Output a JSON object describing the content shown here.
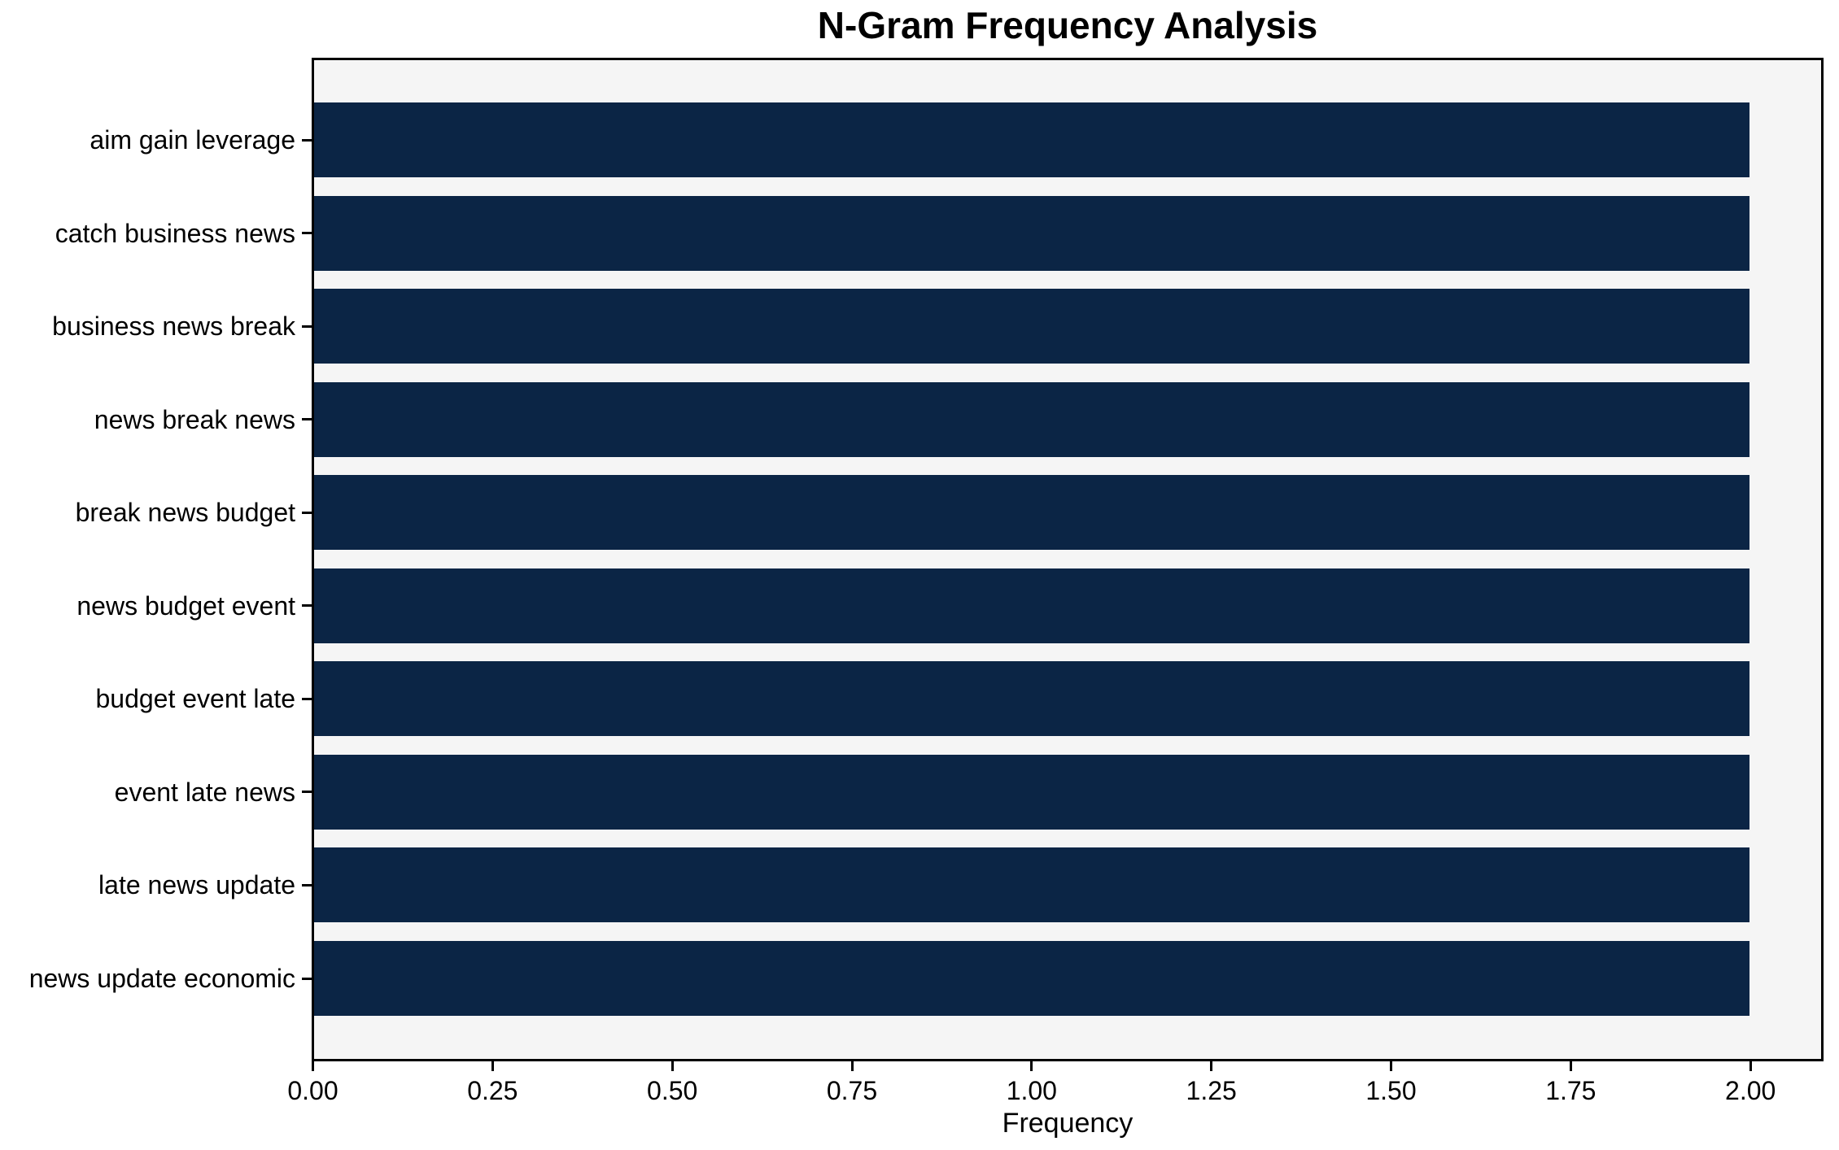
{
  "chart_data": {
    "type": "bar",
    "orientation": "horizontal",
    "title": "N-Gram Frequency Analysis",
    "xlabel": "Frequency",
    "ylabel": "",
    "categories": [
      "aim gain leverage",
      "catch business news",
      "business news break",
      "news break news",
      "break news budget",
      "news budget event",
      "budget event late",
      "event late news",
      "late news update",
      "news update economic"
    ],
    "values": [
      2,
      2,
      2,
      2,
      2,
      2,
      2,
      2,
      2,
      2
    ],
    "xlim": [
      0,
      2.1
    ],
    "xtick_values": [
      0,
      0.25,
      0.5,
      0.75,
      1.0,
      1.25,
      1.5,
      1.75,
      2.0
    ],
    "xtick_labels": [
      "0.00",
      "0.25",
      "0.50",
      "0.75",
      "1.00",
      "1.25",
      "1.50",
      "1.75",
      "2.00"
    ],
    "grid": false,
    "legend": "none",
    "bar_color": "#0b2545",
    "plot_bg": "#f5f5f5",
    "axis_color": "#000000",
    "figure_bg": "#ffffff"
  }
}
